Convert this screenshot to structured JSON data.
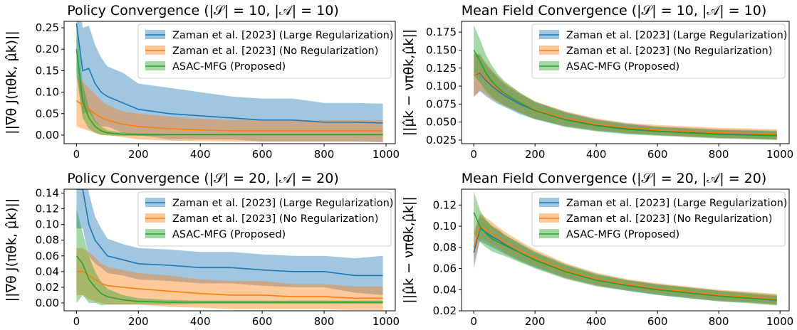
{
  "colors": {
    "large_reg": "#1f77b4",
    "no_reg": "#ff7f0e",
    "proposed": "#2ca02c"
  },
  "chart_data": [
    {
      "type": "line",
      "title": "Policy Convergence (|𝒮| = 10, |𝒜| = 10)",
      "ylabel": "||∇θ J(πθk, μ̂k)||",
      "xlim": [
        -40,
        1030
      ],
      "ylim": [
        -0.02,
        0.265
      ],
      "xticks": [
        0,
        200,
        400,
        600,
        800,
        1000
      ],
      "yticks": [
        0.0,
        0.05,
        0.1,
        0.15,
        0.2,
        0.25
      ],
      "ytick_labels": [
        "0.00",
        "0.05",
        "0.10",
        "0.15",
        "0.20",
        "0.25"
      ],
      "legend_position": "upper right",
      "x": [
        0,
        20,
        40,
        60,
        80,
        100,
        150,
        200,
        300,
        400,
        500,
        600,
        700,
        800,
        900,
        990
      ],
      "series": [
        {
          "name": "Zaman et al. [2023] (Large Regularization)",
          "color_key": "large_reg",
          "values": [
            0.26,
            0.15,
            0.155,
            0.12,
            0.1,
            0.09,
            0.075,
            0.06,
            0.05,
            0.045,
            0.04,
            0.035,
            0.035,
            0.03,
            0.03,
            0.028
          ],
          "band": [
            0.11,
            0.1,
            0.1,
            0.09,
            0.08,
            0.07,
            0.07,
            0.06,
            0.06,
            0.055,
            0.05,
            0.05,
            0.05,
            0.045,
            0.045,
            0.045
          ]
        },
        {
          "name": "Zaman et al. [2023] (No Regularization)",
          "color_key": "no_reg",
          "values": [
            0.08,
            0.07,
            0.06,
            0.05,
            0.04,
            0.035,
            0.025,
            0.02,
            0.015,
            0.012,
            0.01,
            0.01,
            0.01,
            0.01,
            0.01,
            0.01
          ],
          "band": [
            0.06,
            0.055,
            0.05,
            0.045,
            0.04,
            0.035,
            0.03,
            0.03,
            0.028,
            0.026,
            0.025,
            0.025,
            0.025,
            0.025,
            0.025,
            0.025
          ]
        },
        {
          "name": "ASAC-MFG (Proposed)",
          "color_key": "proposed",
          "values": [
            0.2,
            0.08,
            0.04,
            0.02,
            0.01,
            0.005,
            0.002,
            0.001,
            0.001,
            0.001,
            0.001,
            0.001,
            0.001,
            0.001,
            0.001,
            0.001
          ],
          "band": [
            0.06,
            0.04,
            0.025,
            0.015,
            0.01,
            0.006,
            0.004,
            0.003,
            0.002,
            0.002,
            0.002,
            0.002,
            0.002,
            0.002,
            0.002,
            0.002
          ]
        }
      ]
    },
    {
      "type": "line",
      "title": "Mean Field Convergence (|𝒮| = 10, |𝒜| = 10)",
      "ylabel": "||μ̂k − νπθk,μ̂k||",
      "xlim": [
        -40,
        1030
      ],
      "ylim": [
        0.02,
        0.19
      ],
      "xticks": [
        0,
        200,
        400,
        600,
        800,
        1000
      ],
      "yticks": [
        0.025,
        0.05,
        0.075,
        0.1,
        0.125,
        0.15,
        0.175
      ],
      "ytick_labels": [
        "0.025",
        "0.050",
        "0.075",
        "0.100",
        "0.125",
        "0.150",
        "0.175"
      ],
      "legend_position": "upper right",
      "x": [
        0,
        20,
        40,
        60,
        80,
        100,
        150,
        200,
        300,
        400,
        500,
        600,
        700,
        800,
        900,
        990
      ],
      "series": [
        {
          "name": "Zaman et al. [2023] (Large Regularization)",
          "color_key": "large_reg",
          "values": [
            0.115,
            0.118,
            0.108,
            0.1,
            0.093,
            0.087,
            0.075,
            0.066,
            0.054,
            0.046,
            0.041,
            0.038,
            0.036,
            0.034,
            0.033,
            0.032
          ],
          "band": [
            0.03,
            0.025,
            0.022,
            0.02,
            0.018,
            0.016,
            0.014,
            0.012,
            0.01,
            0.008,
            0.007,
            0.006,
            0.006,
            0.006,
            0.006,
            0.006
          ]
        },
        {
          "name": "Zaman et al. [2023] (No Regularization)",
          "color_key": "no_reg",
          "values": [
            0.115,
            0.12,
            0.11,
            0.102,
            0.095,
            0.089,
            0.077,
            0.067,
            0.055,
            0.047,
            0.042,
            0.039,
            0.037,
            0.035,
            0.034,
            0.033
          ],
          "band": [
            0.03,
            0.025,
            0.022,
            0.02,
            0.018,
            0.016,
            0.014,
            0.012,
            0.01,
            0.008,
            0.007,
            0.007,
            0.007,
            0.007,
            0.007,
            0.007
          ]
        },
        {
          "name": "ASAC-MFG (Proposed)",
          "color_key": "proposed",
          "values": [
            0.15,
            0.135,
            0.118,
            0.106,
            0.097,
            0.09,
            0.077,
            0.066,
            0.053,
            0.045,
            0.04,
            0.037,
            0.035,
            0.033,
            0.032,
            0.031
          ],
          "band": [
            0.035,
            0.03,
            0.025,
            0.022,
            0.019,
            0.017,
            0.014,
            0.012,
            0.01,
            0.008,
            0.007,
            0.006,
            0.006,
            0.006,
            0.006,
            0.006
          ]
        }
      ]
    },
    {
      "type": "line",
      "title": "Policy Convergence (|𝒮| = 20, |𝒜| = 20)",
      "ylabel": "||∇θ J(πθk, μ̂k)||",
      "xlim": [
        -40,
        1030
      ],
      "ylim": [
        -0.01,
        0.145
      ],
      "xticks": [
        0,
        200,
        400,
        600,
        800,
        1000
      ],
      "yticks": [
        0.0,
        0.02,
        0.04,
        0.06,
        0.08,
        0.1,
        0.12,
        0.14
      ],
      "ytick_labels": [
        "0.00",
        "0.02",
        "0.04",
        "0.06",
        "0.08",
        "0.10",
        "0.12",
        "0.14"
      ],
      "legend_position": "upper right",
      "x": [
        0,
        20,
        40,
        60,
        80,
        100,
        150,
        200,
        300,
        400,
        500,
        600,
        700,
        800,
        900,
        990
      ],
      "series": [
        {
          "name": "Zaman et al. [2023] (Large Regularization)",
          "color_key": "large_reg",
          "values": [
            0.145,
            0.145,
            0.1,
            0.08,
            0.07,
            0.06,
            0.055,
            0.05,
            0.048,
            0.045,
            0.045,
            0.042,
            0.04,
            0.04,
            0.035,
            0.035
          ],
          "band": [
            0.05,
            0.05,
            0.04,
            0.03,
            0.025,
            0.022,
            0.02,
            0.02,
            0.02,
            0.02,
            0.02,
            0.02,
            0.02,
            0.02,
            0.022,
            0.025
          ]
        },
        {
          "name": "Zaman et al. [2023] (No Regularization)",
          "color_key": "no_reg",
          "values": [
            0.04,
            0.04,
            0.035,
            0.03,
            0.025,
            0.022,
            0.02,
            0.018,
            0.015,
            0.012,
            0.01,
            0.01,
            0.008,
            0.008,
            0.006,
            0.006
          ],
          "band": [
            0.03,
            0.03,
            0.03,
            0.028,
            0.025,
            0.024,
            0.022,
            0.02,
            0.02,
            0.018,
            0.018,
            0.018,
            0.016,
            0.016,
            0.015,
            0.015
          ]
        },
        {
          "name": "ASAC-MFG (Proposed)",
          "color_key": "proposed",
          "values": [
            0.06,
            0.05,
            0.03,
            0.02,
            0.012,
            0.008,
            0.004,
            0.002,
            0.001,
            0.001,
            0.001,
            0.001,
            0.001,
            0.001,
            0.001,
            0.001
          ],
          "band": [
            0.06,
            0.04,
            0.03,
            0.02,
            0.015,
            0.01,
            0.006,
            0.004,
            0.003,
            0.002,
            0.002,
            0.002,
            0.002,
            0.002,
            0.002,
            0.002
          ]
        }
      ]
    },
    {
      "type": "line",
      "title": "Mean Field Convergence (|𝒮| = 20, |𝒜| = 20)",
      "ylabel": "||μ̂k − νπθk,μ̂k||",
      "xlim": [
        -40,
        1030
      ],
      "ylim": [
        0.02,
        0.135
      ],
      "xticks": [
        0,
        200,
        400,
        600,
        800,
        1000
      ],
      "yticks": [
        0.02,
        0.04,
        0.06,
        0.08,
        0.1,
        0.12
      ],
      "ytick_labels": [
        "0.02",
        "0.04",
        "0.06",
        "0.08",
        "0.10",
        "0.12"
      ],
      "legend_position": "upper right",
      "x": [
        0,
        20,
        40,
        60,
        80,
        100,
        150,
        200,
        300,
        400,
        500,
        600,
        700,
        800,
        900,
        990
      ],
      "series": [
        {
          "name": "Zaman et al. [2023] (Large Regularization)",
          "color_key": "large_reg",
          "values": [
            0.075,
            0.098,
            0.094,
            0.09,
            0.087,
            0.083,
            0.075,
            0.068,
            0.057,
            0.049,
            0.044,
            0.04,
            0.037,
            0.034,
            0.032,
            0.03
          ],
          "band": [
            0.015,
            0.012,
            0.011,
            0.01,
            0.01,
            0.009,
            0.008,
            0.007,
            0.006,
            0.005,
            0.005,
            0.005,
            0.005,
            0.005,
            0.004,
            0.004
          ]
        },
        {
          "name": "Zaman et al. [2023] (No Regularization)",
          "color_key": "no_reg",
          "values": [
            0.08,
            0.1,
            0.097,
            0.093,
            0.089,
            0.085,
            0.077,
            0.07,
            0.058,
            0.05,
            0.045,
            0.041,
            0.038,
            0.035,
            0.033,
            0.031
          ],
          "band": [
            0.015,
            0.012,
            0.011,
            0.011,
            0.01,
            0.01,
            0.009,
            0.008,
            0.007,
            0.006,
            0.005,
            0.005,
            0.005,
            0.005,
            0.005,
            0.005
          ]
        },
        {
          "name": "ASAC-MFG (Proposed)",
          "color_key": "proposed",
          "values": [
            0.113,
            0.1,
            0.093,
            0.088,
            0.085,
            0.082,
            0.075,
            0.068,
            0.057,
            0.049,
            0.044,
            0.04,
            0.037,
            0.034,
            0.032,
            0.03
          ],
          "band": [
            0.02,
            0.015,
            0.013,
            0.012,
            0.011,
            0.01,
            0.009,
            0.008,
            0.007,
            0.006,
            0.005,
            0.005,
            0.005,
            0.005,
            0.005,
            0.005
          ]
        }
      ]
    }
  ]
}
